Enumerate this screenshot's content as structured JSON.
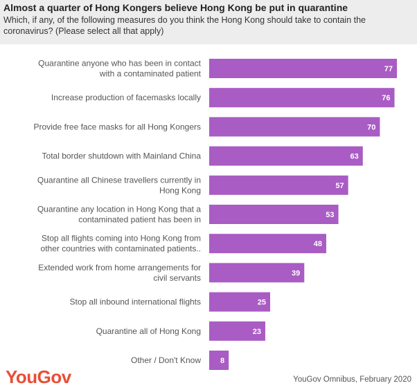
{
  "header": {
    "title": "Almost a quarter of Hong Kongers believe Hong Kong be put in quarantine",
    "subtitle": "Which, if any, of the following measures do you think the Hong Kong should take to contain the coronavirus? (Please select all that apply)"
  },
  "chart_data": {
    "type": "bar",
    "orientation": "horizontal",
    "categories": [
      [
        "Quarantine anyone who has been in contact",
        "with a contaminated patient"
      ],
      [
        "Increase production of facemasks locally"
      ],
      [
        "Provide free face masks for all Hong Kongers"
      ],
      [
        "Total border shutdown with Mainland China"
      ],
      [
        "Quarantine all Chinese travellers currently in",
        "Hong Kong"
      ],
      [
        "Quarantine any location in Hong Kong that a",
        "contaminated patient has been in"
      ],
      [
        "Stop all flights coming into Hong Kong from",
        "other countries with contaminated patients.."
      ],
      [
        "Extended work from home arrangements for",
        "civil servants"
      ],
      [
        "Stop all inbound international flights"
      ],
      [
        "Quarantine all of Hong Kong"
      ],
      [
        "Other / Don't Know"
      ]
    ],
    "values": [
      77,
      76,
      70,
      63,
      57,
      53,
      48,
      39,
      25,
      23,
      8
    ],
    "xlim": [
      0,
      80
    ],
    "grid": false,
    "legend": "none",
    "bar_color": "#a95cc4",
    "label_color": "#ffffff"
  },
  "footer": {
    "logo": "YouGov",
    "source": "YouGov Omnibus, February 2020",
    "logo_color": "#ea4d35"
  }
}
